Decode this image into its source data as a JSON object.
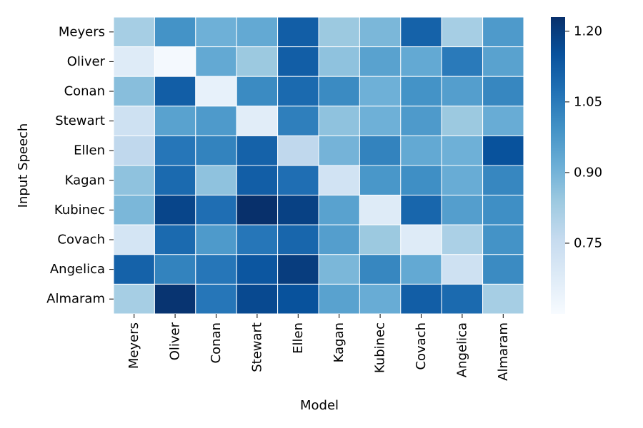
{
  "chart_data": {
    "type": "heatmap",
    "xlabel": "Model",
    "ylabel": "Input Speech",
    "x_categories": [
      "Meyers",
      "Oliver",
      "Conan",
      "Stewart",
      "Ellen",
      "Kagan",
      "Kubinec",
      "Covach",
      "Angelica",
      "Almaram"
    ],
    "y_categories": [
      "Meyers",
      "Oliver",
      "Conan",
      "Stewart",
      "Ellen",
      "Kagan",
      "Kubinec",
      "Covach",
      "Angelica",
      "Almaram"
    ],
    "values": [
      [
        0.82,
        0.99,
        0.91,
        0.93,
        1.12,
        0.84,
        0.89,
        1.11,
        0.82,
        0.97
      ],
      [
        0.68,
        0.61,
        0.93,
        0.84,
        1.12,
        0.86,
        0.95,
        0.93,
        1.05,
        0.95
      ],
      [
        0.87,
        1.12,
        0.65,
        1.01,
        1.09,
        1.01,
        0.91,
        0.99,
        0.96,
        1.02
      ],
      [
        0.73,
        0.95,
        0.97,
        0.67,
        1.04,
        0.86,
        0.91,
        0.97,
        0.84,
        0.92
      ],
      [
        0.77,
        1.06,
        1.03,
        1.11,
        0.77,
        0.9,
        1.03,
        0.93,
        0.91,
        1.15
      ],
      [
        0.86,
        1.09,
        0.86,
        1.12,
        1.08,
        0.72,
        0.98,
        1.0,
        0.92,
        1.02
      ],
      [
        0.89,
        1.18,
        1.08,
        1.23,
        1.19,
        0.95,
        0.68,
        1.1,
        0.96,
        1.0
      ],
      [
        0.71,
        1.09,
        0.97,
        1.06,
        1.1,
        0.96,
        0.84,
        0.68,
        0.81,
        0.99
      ],
      [
        1.11,
        1.03,
        1.06,
        1.14,
        1.2,
        0.89,
        1.02,
        0.93,
        0.73,
        1.01
      ],
      [
        0.82,
        1.22,
        1.06,
        1.17,
        1.15,
        0.95,
        0.92,
        1.12,
        1.09,
        0.82
      ]
    ],
    "colorbar": {
      "min": 0.6,
      "max": 1.23,
      "ticks": [
        0.75,
        0.9,
        1.05,
        1.2
      ],
      "tick_labels": [
        "0.75",
        "0.90",
        "1.05",
        "1.20"
      ]
    },
    "colormap": {
      "name": "Blues",
      "stops": [
        "#f7fbff",
        "#deebf7",
        "#c6dbef",
        "#9ecae1",
        "#6baed6",
        "#4292c6",
        "#2171b5",
        "#08519c",
        "#08306b"
      ]
    },
    "grid": false,
    "legend": "colorbar-right"
  }
}
